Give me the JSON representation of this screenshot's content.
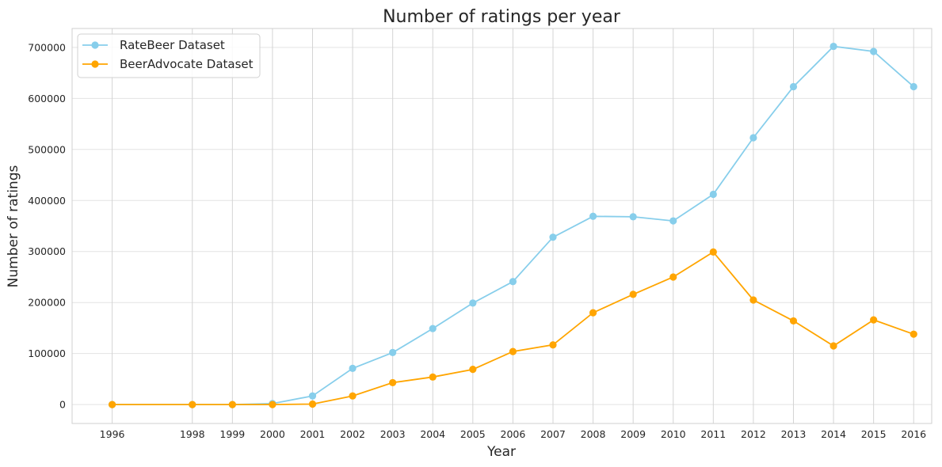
{
  "chart_data": {
    "type": "line",
    "title": "Number of ratings per year",
    "xlabel": "Year",
    "ylabel": "Number of ratings",
    "x": [
      1996,
      1998,
      1999,
      2000,
      2001,
      2002,
      2003,
      2004,
      2005,
      2006,
      2007,
      2008,
      2009,
      2010,
      2011,
      2012,
      2013,
      2014,
      2015,
      2016
    ],
    "x_ticks": [
      "1996",
      "1998",
      "1999",
      "2000",
      "2001",
      "2002",
      "2003",
      "2004",
      "2005",
      "2006",
      "2007",
      "2008",
      "2009",
      "2010",
      "2011",
      "2012",
      "2013",
      "2014",
      "2015",
      "2016"
    ],
    "xlim": [
      1995.0,
      2016.45
    ],
    "ylim": [
      -37000,
      737000
    ],
    "y_ticks": [
      0,
      100000,
      200000,
      300000,
      400000,
      500000,
      600000,
      700000
    ],
    "y_tick_labels": [
      "0",
      "100000",
      "200000",
      "300000",
      "400000",
      "500000",
      "600000",
      "700000"
    ],
    "grid": true,
    "legend": "top-left",
    "series": [
      {
        "name": "RateBeer Dataset",
        "color": "#87ceeb",
        "x": [
          1996,
          1998,
          1999,
          2000,
          2001,
          2002,
          2003,
          2004,
          2005,
          2006,
          2007,
          2008,
          2009,
          2010,
          2011,
          2012,
          2013,
          2014,
          2015,
          2016
        ],
        "values": [
          0,
          0,
          0,
          2000,
          17000,
          71000,
          102000,
          149000,
          199000,
          241000,
          328000,
          369000,
          368000,
          360000,
          412000,
          523000,
          623000,
          702000,
          692000,
          623000
        ]
      },
      {
        "name": "BeerAdvocate Dataset",
        "color": "#ffa500",
        "x": [
          1996,
          1998,
          1999,
          2000,
          2001,
          2002,
          2003,
          2004,
          2005,
          2006,
          2007,
          2008,
          2009,
          2010,
          2011,
          2012,
          2013,
          2014,
          2015,
          2016
        ],
        "values": [
          0,
          0,
          0,
          0,
          1000,
          17000,
          43000,
          54000,
          69000,
          104000,
          117000,
          180000,
          216000,
          250000,
          299000,
          205000,
          164000,
          115000,
          166000,
          138000
        ]
      }
    ]
  }
}
